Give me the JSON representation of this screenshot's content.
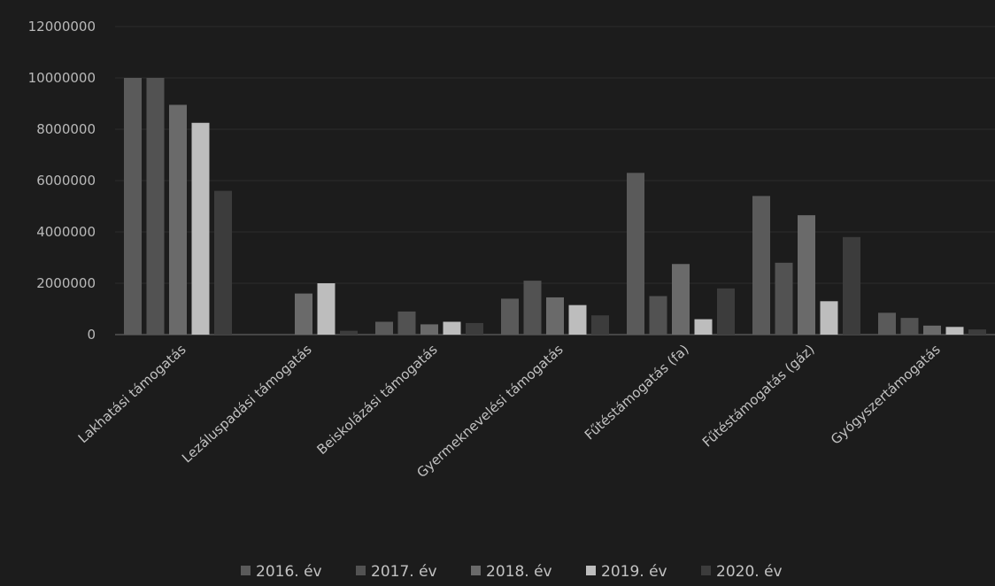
{
  "chart_data": {
    "type": "bar",
    "title": "",
    "xlabel": "",
    "ylabel": "",
    "ylim": [
      0,
      12000000
    ],
    "yticks": [
      0,
      2000000,
      4000000,
      6000000,
      8000000,
      10000000,
      12000000
    ],
    "grid": true,
    "legend_position": "bottom",
    "categories": [
      "Lakhatási támogatás",
      "Lezáluspadási támogatás",
      "Beiskolázási támogatás",
      "Gyermeknevelési támogatás",
      "Fűtéstámogatás (fa)",
      "Fűtéstámogatás (gáz)",
      "Gyógyszertámogatás"
    ],
    "series": [
      {
        "name": "2016. év",
        "color": "#5a5a5a",
        "values": [
          10000000,
          0,
          500000,
          1400000,
          6300000,
          5400000,
          850000
        ]
      },
      {
        "name": "2017. év",
        "color": "#525252",
        "values": [
          10000000,
          0,
          900000,
          2100000,
          1500000,
          2800000,
          650000
        ]
      },
      {
        "name": "2018. év",
        "color": "#6a6a6a",
        "values": [
          8950000,
          1600000,
          400000,
          1450000,
          2750000,
          4650000,
          350000
        ]
      },
      {
        "name": "2019. év",
        "color": "#bdbdbd",
        "values": [
          8250000,
          2000000,
          500000,
          1150000,
          600000,
          1300000,
          300000
        ]
      },
      {
        "name": "2020. év",
        "color": "#3c3c3c",
        "values": [
          5600000,
          150000,
          450000,
          750000,
          1800000,
          3800000,
          200000
        ]
      }
    ]
  }
}
